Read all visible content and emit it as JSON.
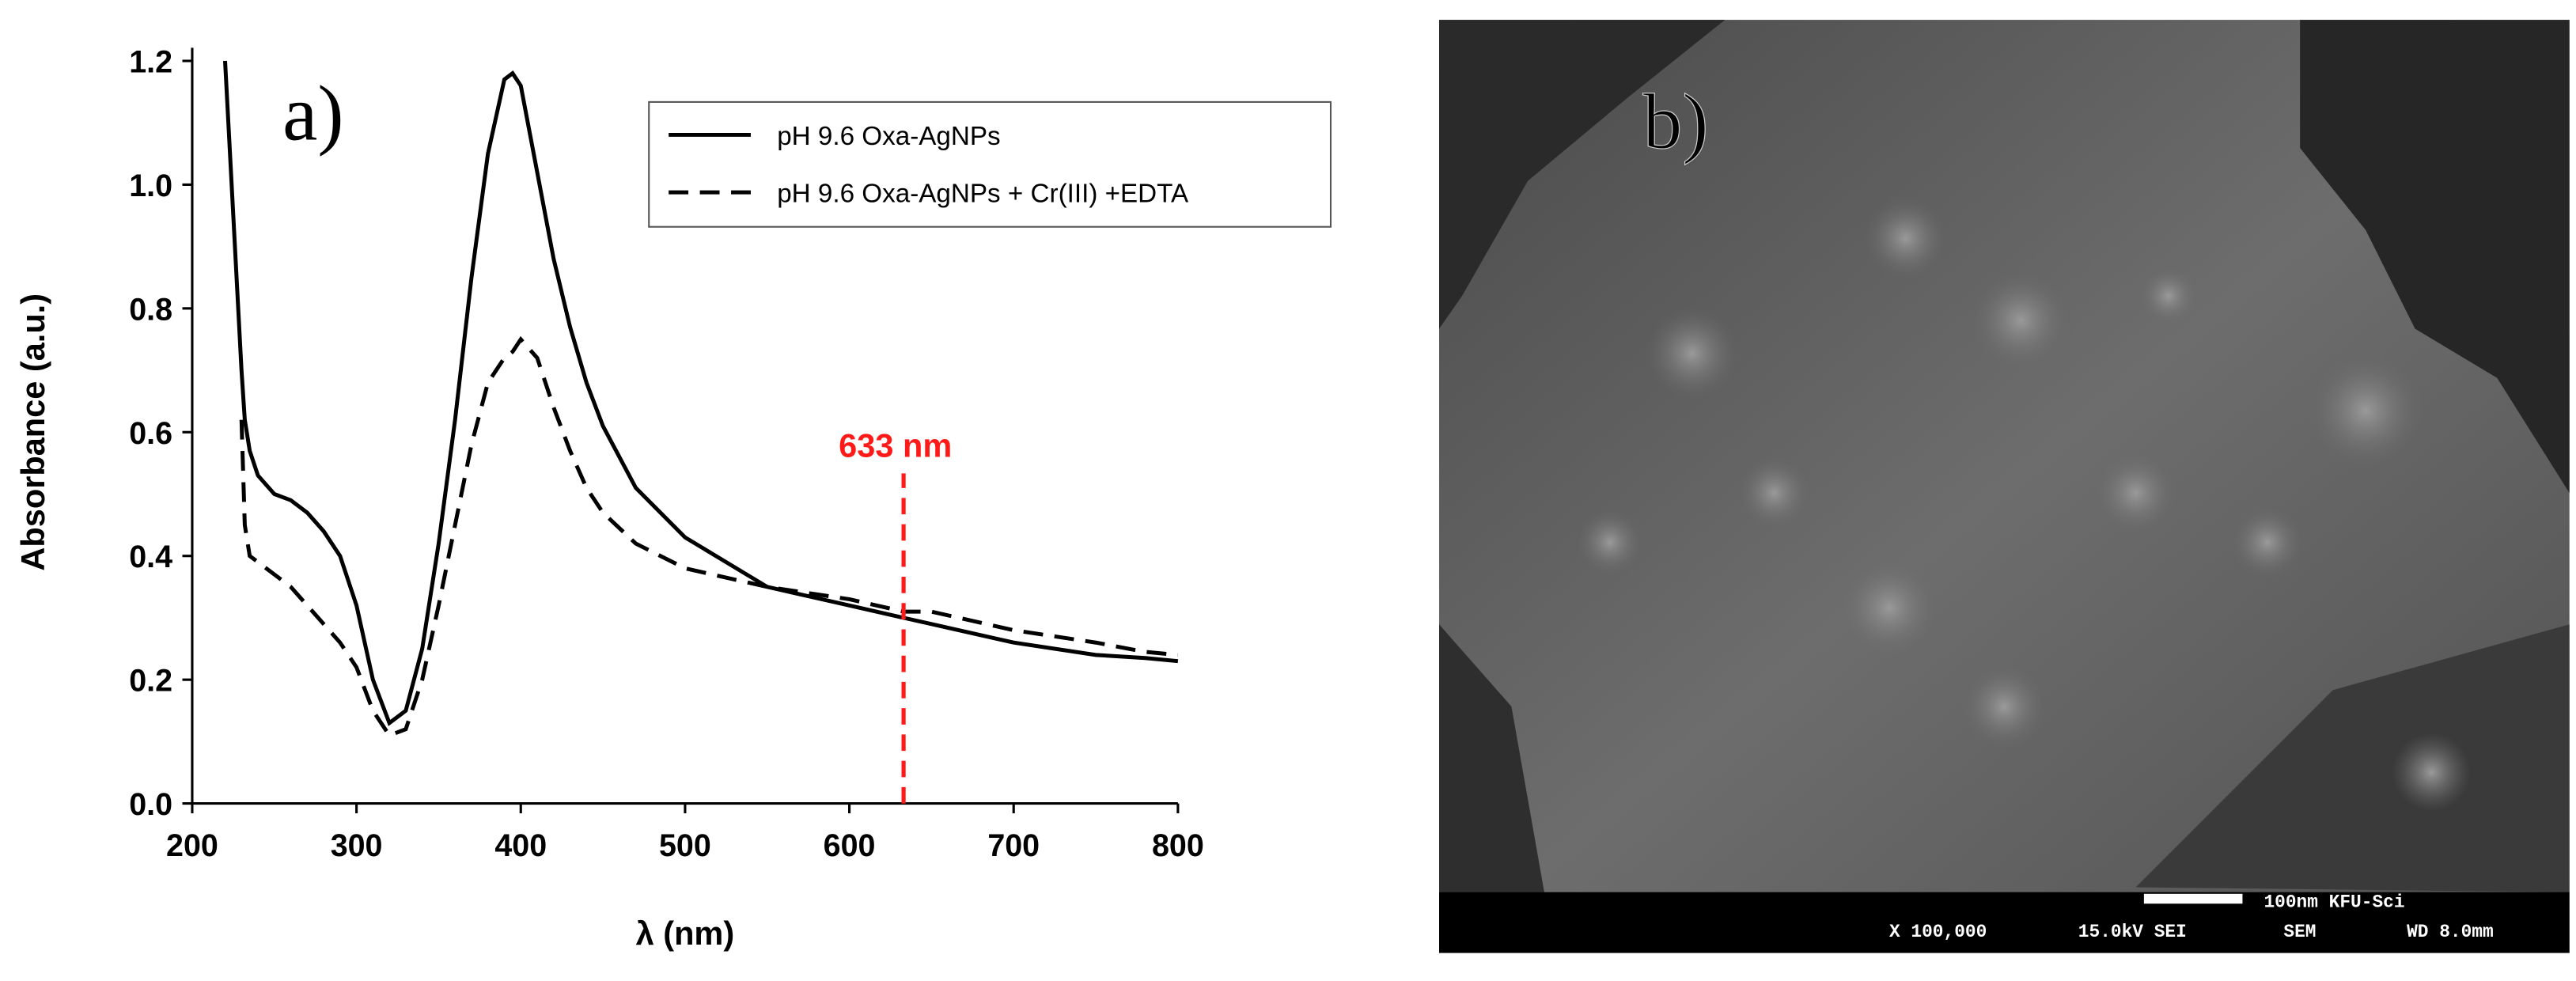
{
  "chart_data": {
    "type": "line",
    "panel_label": "a)",
    "x_label": "λ (nm)",
    "y_label": "Absorbance (a.u.)",
    "x": [
      220,
      225,
      230,
      232,
      235,
      240,
      250,
      260,
      270,
      280,
      290,
      300,
      310,
      320,
      330,
      340,
      350,
      360,
      370,
      380,
      390,
      395,
      400,
      410,
      420,
      430,
      440,
      450,
      470,
      500,
      550,
      600,
      633,
      650,
      700,
      750,
      780,
      800
    ],
    "series": [
      {
        "name": "pH 9.6 Oxa-AgNPs",
        "color": "#000000",
        "dash": "solid",
        "values": [
          1.2,
          0.95,
          0.7,
          0.62,
          0.57,
          0.53,
          0.5,
          0.49,
          0.47,
          0.44,
          0.4,
          0.32,
          0.2,
          0.13,
          0.15,
          0.25,
          0.42,
          0.62,
          0.85,
          1.05,
          1.17,
          1.18,
          1.16,
          1.02,
          0.88,
          0.77,
          0.68,
          0.61,
          0.51,
          0.43,
          0.35,
          0.32,
          0.3,
          0.29,
          0.26,
          0.24,
          0.235,
          0.23
        ]
      },
      {
        "name": "pH 9.6 Oxa-AgNPs + Cr(III) +EDTA",
        "color": "#000000",
        "dash": "dashed",
        "values": [
          null,
          null,
          0.62,
          0.45,
          0.4,
          0.39,
          0.37,
          0.35,
          0.32,
          0.29,
          0.26,
          0.22,
          0.15,
          0.11,
          0.12,
          0.2,
          0.32,
          0.45,
          0.58,
          0.68,
          0.72,
          0.73,
          0.75,
          0.72,
          0.64,
          0.57,
          0.51,
          0.47,
          0.42,
          0.38,
          0.35,
          0.33,
          0.31,
          0.31,
          0.28,
          0.26,
          0.245,
          0.24
        ]
      }
    ],
    "xlim": [
      200,
      800
    ],
    "xticks": [
      200,
      300,
      400,
      500,
      600,
      700,
      800
    ],
    "ylim": [
      0,
      1.2
    ],
    "yticks": [
      {
        "value": 0,
        "label": "0.0"
      },
      {
        "value": 0.2,
        "label": "0.2"
      },
      {
        "value": 0.4,
        "label": "0.4"
      },
      {
        "value": 0.6,
        "label": "0.6"
      },
      {
        "value": 0.8,
        "label": "0.8"
      },
      {
        "value": 1,
        "label": "1.0"
      },
      {
        "value": 1.2,
        "label": "1.2"
      }
    ],
    "legend": "upper right",
    "annotations": [
      {
        "text": "633 nm",
        "x": 633,
        "y": 0.56,
        "color": "#ff1a1a"
      }
    ]
  },
  "sem_image": {
    "panel_label": "b)",
    "scale_text": "100nm KFU-Sci",
    "magnification": "X 100,000",
    "voltage": "15.0kV SEI",
    "mode": "SEM",
    "working_distance": "WD 8.0mm"
  }
}
